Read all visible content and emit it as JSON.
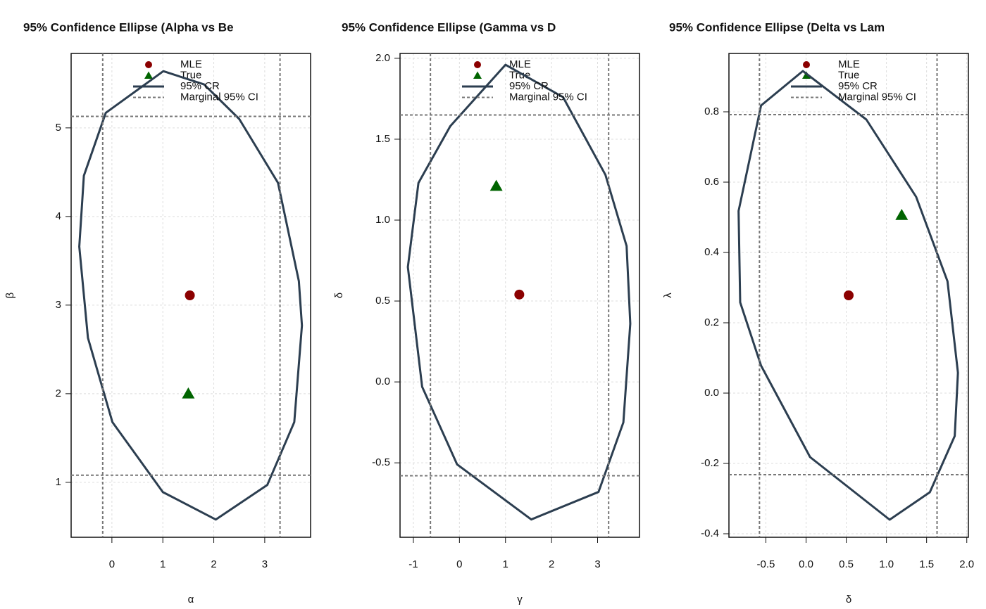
{
  "chart_data": [
    {
      "type": "scatter",
      "title": "95% Confidence Ellipse (Alpha vs Be",
      "xlabel": "α",
      "ylabel": "β",
      "xlim": [
        -0.8,
        3.9
      ],
      "ylim": [
        0.38,
        5.84
      ],
      "xticks": [
        0,
        1,
        2,
        3
      ],
      "yticks": [
        1,
        2,
        3,
        4,
        5
      ],
      "grid": true,
      "legend": "top",
      "series": [
        {
          "name": "MLE",
          "kind": "circle",
          "color": "#8b0000",
          "x": [
            1.53
          ],
          "y": [
            3.11
          ]
        },
        {
          "name": "True",
          "kind": "triangle",
          "color": "#006400",
          "x": [
            1.5
          ],
          "y": [
            2.0
          ]
        },
        {
          "name": "95% CR",
          "kind": "closed-line",
          "color": "#2c3e50",
          "x": [
            1.01,
            1.81,
            2.5,
            3.26,
            3.67,
            3.73,
            3.58,
            3.05,
            2.04,
            1.0,
            0.01,
            -0.47,
            -0.64,
            -0.55,
            -0.12
          ],
          "y": [
            5.64,
            5.49,
            5.1,
            4.38,
            3.27,
            2.77,
            1.68,
            0.97,
            0.58,
            0.89,
            1.68,
            2.63,
            3.66,
            4.46,
            5.17
          ]
        },
        {
          "name": "Marginal 95% CI",
          "kind": "ci-lines",
          "color": "#777777",
          "x": [
            -0.18,
            3.3
          ],
          "y": [
            1.08,
            5.13
          ]
        }
      ]
    },
    {
      "type": "scatter",
      "title": "95% Confidence Ellipse (Gamma vs D",
      "xlabel": "γ",
      "ylabel": "δ",
      "xlim": [
        -1.29,
        3.91
      ],
      "ylim": [
        -0.96,
        2.03
      ],
      "xticks": [
        -1,
        0,
        1,
        2,
        3
      ],
      "yticks": [
        {
          "value": 2,
          "label": "2.0"
        },
        1.5,
        {
          "value": 1,
          "label": "1.0"
        },
        0.5,
        {
          "value": 0,
          "label": "0.0"
        },
        -0.5
      ],
      "grid": true,
      "legend": "top",
      "series": [
        {
          "name": "MLE",
          "kind": "circle",
          "color": "#8b0000",
          "x": [
            1.3
          ],
          "y": [
            0.54
          ]
        },
        {
          "name": "True",
          "kind": "triangle",
          "color": "#006400",
          "x": [
            0.8
          ],
          "y": [
            1.21
          ]
        },
        {
          "name": "95% CR",
          "kind": "closed-line",
          "color": "#2c3e50",
          "x": [
            1.0,
            2.25,
            3.17,
            3.63,
            3.71,
            3.56,
            3.02,
            1.56,
            -0.05,
            -0.81,
            -1.12,
            -0.89,
            -0.2
          ],
          "y": [
            1.96,
            1.76,
            1.28,
            0.84,
            0.36,
            -0.25,
            -0.68,
            -0.85,
            -0.51,
            -0.03,
            0.71,
            1.23,
            1.58
          ]
        },
        {
          "name": "Marginal 95% CI",
          "kind": "ci-lines",
          "color": "#777777",
          "x": [
            -0.63,
            3.24
          ],
          "y": [
            -0.58,
            1.65
          ]
        }
      ]
    },
    {
      "type": "scatter",
      "title": "95% Confidence Ellipse (Delta vs Lam",
      "xlabel": "δ",
      "ylabel": "λ",
      "xlim": [
        -0.96,
        2.02
      ],
      "ylim": [
        -0.41,
        0.966
      ],
      "xticks": [
        -0.5,
        {
          "value": 0,
          "label": "0.0"
        },
        0.5,
        {
          "value": 1,
          "label": "1.0"
        },
        1.5,
        {
          "value": 2,
          "label": "2.0"
        }
      ],
      "yticks": [
        0.8,
        0.6,
        0.4,
        0.2,
        {
          "value": 0,
          "label": "0.0"
        },
        -0.2,
        -0.4
      ],
      "grid": true,
      "legend": "top",
      "series": [
        {
          "name": "MLE",
          "kind": "circle",
          "color": "#8b0000",
          "x": [
            0.53
          ],
          "y": [
            0.278
          ]
        },
        {
          "name": "True",
          "kind": "triangle",
          "color": "#006400",
          "x": [
            1.19
          ],
          "y": [
            0.506
          ]
        },
        {
          "name": "95% CR",
          "kind": "closed-line",
          "color": "#2c3e50",
          "x": [
            -0.04,
            0.75,
            1.37,
            1.76,
            1.89,
            1.85,
            1.54,
            1.04,
            0.05,
            -0.56,
            -0.82,
            -0.84,
            -0.56
          ],
          "y": [
            0.916,
            0.778,
            0.558,
            0.318,
            0.058,
            -0.122,
            -0.282,
            -0.36,
            -0.182,
            0.078,
            0.258,
            0.518,
            0.818
          ]
        },
        {
          "name": "Marginal 95% CI",
          "kind": "ci-lines",
          "color": "#777777",
          "x": [
            -0.58,
            1.63
          ],
          "y": [
            -0.232,
            0.792
          ]
        }
      ]
    }
  ]
}
